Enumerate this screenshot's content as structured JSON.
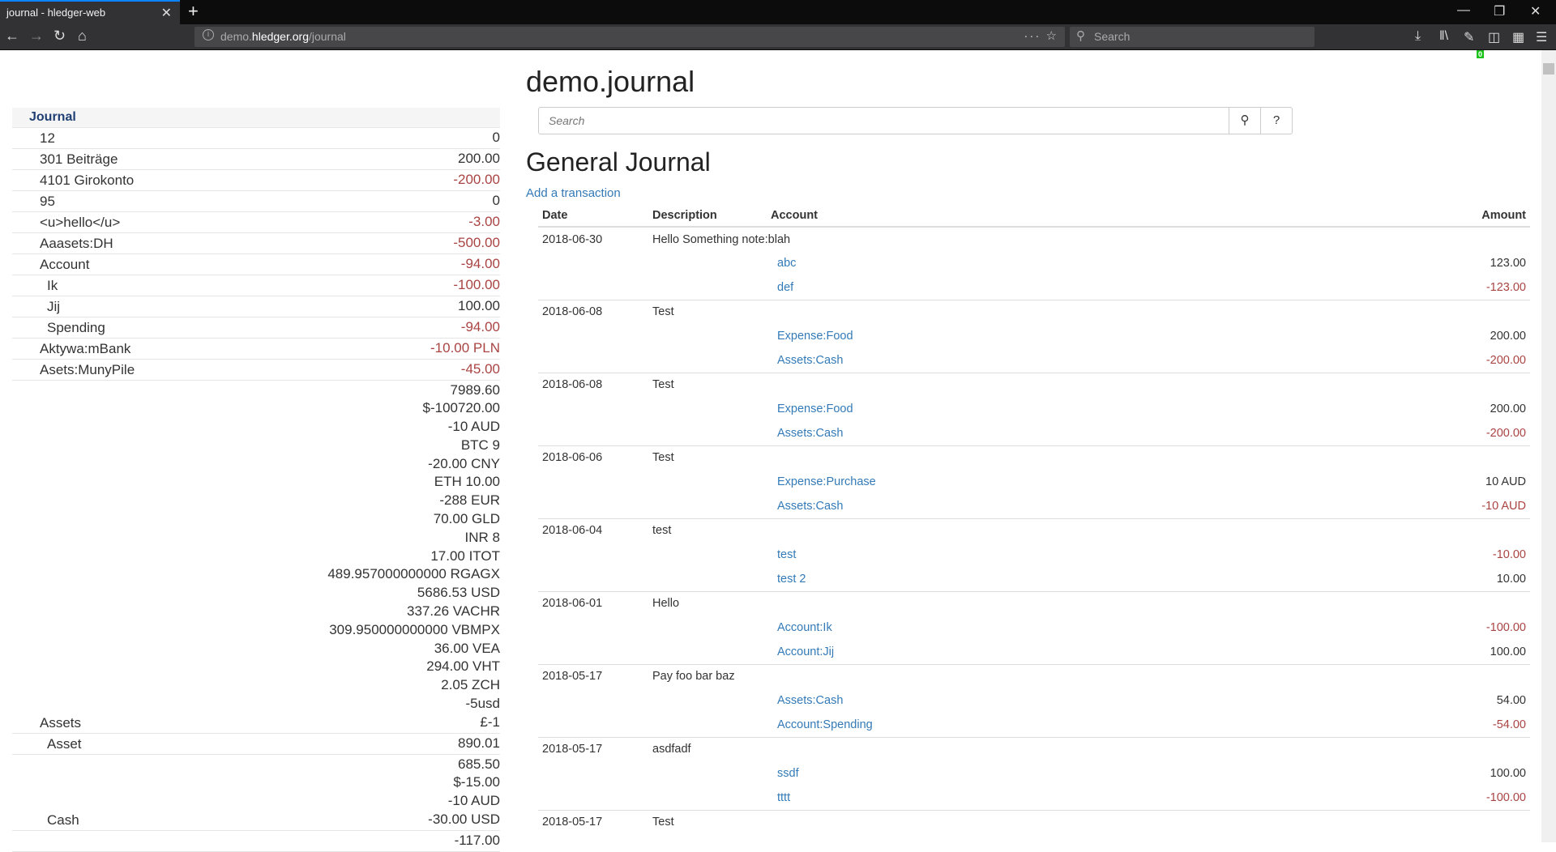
{
  "browser": {
    "tab_title": "journal - hledger-web",
    "url_host_pre": "demo.",
    "url_host_main": "hledger.org",
    "url_path": "/journal",
    "search_placeholder": "Search",
    "badge": "0"
  },
  "sidebar": {
    "header": "Journal",
    "rows": [
      {
        "name": "12",
        "amounts": [
          {
            "v": "0",
            "neg": false
          }
        ]
      },
      {
        "name": "301 Beiträge",
        "amounts": [
          {
            "v": "200.00",
            "neg": false
          }
        ]
      },
      {
        "name": "4101 Girokonto",
        "amounts": [
          {
            "v": "-200.00",
            "neg": true
          }
        ]
      },
      {
        "name": "95",
        "amounts": [
          {
            "v": "0",
            "neg": false
          }
        ]
      },
      {
        "name": "<u>hello</u>",
        "amounts": [
          {
            "v": "-3.00",
            "neg": true
          }
        ]
      },
      {
        "name": "Aaasets:DH",
        "amounts": [
          {
            "v": "-500.00",
            "neg": true
          }
        ]
      },
      {
        "name": "Account",
        "amounts": [
          {
            "v": "-94.00",
            "neg": true
          }
        ]
      },
      {
        "name": "Ik",
        "sub": true,
        "amounts": [
          {
            "v": "-100.00",
            "neg": true
          }
        ]
      },
      {
        "name": "Jij",
        "sub": true,
        "amounts": [
          {
            "v": "100.00",
            "neg": false
          }
        ]
      },
      {
        "name": "Spending",
        "sub": true,
        "amounts": [
          {
            "v": "-94.00",
            "neg": true
          }
        ]
      },
      {
        "name": "Aktywa:mBank",
        "amounts": [
          {
            "v": "-10.00 PLN",
            "neg": true
          }
        ]
      },
      {
        "name": "Asets:MunyPile",
        "amounts": [
          {
            "v": "-45.00",
            "neg": true
          }
        ]
      },
      {
        "name": "Assets",
        "amounts": [
          {
            "v": "7989.60"
          },
          {
            "v": "$-100720.00"
          },
          {
            "v": "-10 AUD"
          },
          {
            "v": "BTC 9"
          },
          {
            "v": "-20.00 CNY"
          },
          {
            "v": "ETH 10.00"
          },
          {
            "v": "-288 EUR"
          },
          {
            "v": "70.00 GLD"
          },
          {
            "v": "INR 8"
          },
          {
            "v": "17.00 ITOT"
          },
          {
            "v": "489.957000000000 RGAGX"
          },
          {
            "v": "5686.53 USD"
          },
          {
            "v": "337.26 VACHR"
          },
          {
            "v": "309.950000000000 VBMPX"
          },
          {
            "v": "36.00 VEA"
          },
          {
            "v": "294.00 VHT"
          },
          {
            "v": "2.05 ZCH"
          },
          {
            "v": "-5usd"
          },
          {
            "v": "£-1"
          }
        ]
      },
      {
        "name": "Asset",
        "sub": true,
        "amounts": [
          {
            "v": "890.01"
          }
        ]
      },
      {
        "name": "Cash",
        "sub": true,
        "amounts": [
          {
            "v": "685.50"
          },
          {
            "v": "$-15.00"
          },
          {
            "v": "-10 AUD"
          },
          {
            "v": "-30.00 USD"
          }
        ]
      },
      {
        "name": "",
        "sub": true,
        "amounts": [
          {
            "v": "-117.00"
          }
        ]
      }
    ]
  },
  "main": {
    "title": "demo.journal",
    "search_placeholder": "Search",
    "help_label": "?",
    "heading": "General Journal",
    "add_label": "Add a transaction",
    "columns": {
      "date": "Date",
      "description": "Description",
      "account": "Account",
      "amount": "Amount"
    },
    "transactions": [
      {
        "date": "2018-06-30",
        "desc": "Hello Something note:blah",
        "postings": [
          {
            "acct": "abc",
            "amt": "123.00",
            "neg": false
          },
          {
            "acct": "def",
            "amt": "-123.00",
            "neg": true
          }
        ]
      },
      {
        "date": "2018-06-08",
        "desc": "Test",
        "postings": [
          {
            "acct": "Expense:Food",
            "amt": "200.00",
            "neg": false
          },
          {
            "acct": "Assets:Cash",
            "amt": "-200.00",
            "neg": true
          }
        ]
      },
      {
        "date": "2018-06-08",
        "desc": "Test",
        "postings": [
          {
            "acct": "Expense:Food",
            "amt": "200.00",
            "neg": false
          },
          {
            "acct": "Assets:Cash",
            "amt": "-200.00",
            "neg": true
          }
        ]
      },
      {
        "date": "2018-06-06",
        "desc": "Test",
        "postings": [
          {
            "acct": "Expense:Purchase",
            "amt": "10 AUD",
            "neg": false
          },
          {
            "acct": "Assets:Cash",
            "amt": "-10 AUD",
            "neg": true
          }
        ]
      },
      {
        "date": "2018-06-04",
        "desc": "test",
        "postings": [
          {
            "acct": "test",
            "amt": "-10.00",
            "neg": true
          },
          {
            "acct": "test 2",
            "amt": "10.00",
            "neg": false
          }
        ]
      },
      {
        "date": "2018-06-01",
        "desc": "Hello",
        "postings": [
          {
            "acct": "Account:Ik",
            "amt": "-100.00",
            "neg": true
          },
          {
            "acct": "Account:Jij",
            "amt": "100.00",
            "neg": false
          }
        ]
      },
      {
        "date": "2018-05-17",
        "desc": "Pay foo bar baz",
        "postings": [
          {
            "acct": "Assets:Cash",
            "amt": "54.00",
            "neg": false
          },
          {
            "acct": "Account:Spending",
            "amt": "-54.00",
            "neg": true
          }
        ]
      },
      {
        "date": "2018-05-17",
        "desc": "asdfadf",
        "postings": [
          {
            "acct": "ssdf",
            "amt": "100.00",
            "neg": false
          },
          {
            "acct": "tttt",
            "amt": "-100.00",
            "neg": true
          }
        ]
      },
      {
        "date": "2018-05-17",
        "desc": "Test",
        "postings": []
      }
    ]
  },
  "colors": {
    "link": "#337ab7",
    "negative": "#a94442",
    "browser_chrome": "#323234"
  }
}
